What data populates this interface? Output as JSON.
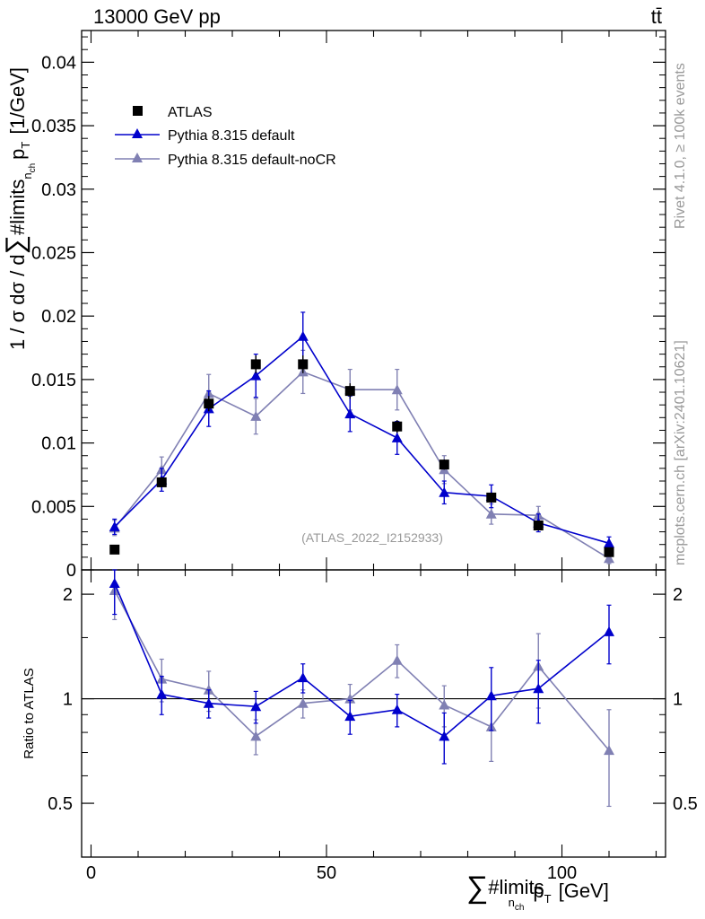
{
  "header": {
    "left": "13000 GeV pp",
    "right": "tt̄"
  },
  "side_labels": {
    "top": "Rivet 4.1.0, ≥ 100k events",
    "bottom": "mcplots.cern.ch [arXiv:2401.10621]"
  },
  "chart_data": [
    {
      "type": "scatter",
      "panel": "main",
      "ylabel": {
        "prefix": "1 / σ dσ / d",
        "sum_glyph": "∑",
        "mid": "#limits",
        "sub": "n",
        "subsub": "ch",
        "var": "p",
        "var_sub": "T",
        "unit": "[1/GeV]"
      },
      "xlim": [
        -2,
        122
      ],
      "ylim": [
        0,
        0.0425
      ],
      "y_ticks": [
        0,
        0.005,
        0.01,
        0.015,
        0.02,
        0.025,
        0.03,
        0.035,
        0.04
      ],
      "y_tick_labels": [
        "0",
        "0.005",
        "0.01",
        "0.015",
        "0.02",
        "0.025",
        "0.03",
        "0.035",
        "0.04"
      ],
      "annotation": "(ATLAS_2022_I2152933)",
      "legend_position": "top-left",
      "series": [
        {
          "name": "ATLAS",
          "marker": "square",
          "color": "#000000",
          "x": [
            5,
            15,
            25,
            35,
            45,
            55,
            65,
            75,
            85,
            95,
            110
          ],
          "y": [
            0.0016,
            0.0069,
            0.0131,
            0.0162,
            0.0162,
            0.0141,
            0.0113,
            0.0083,
            0.0057,
            0.0035,
            0.0014
          ],
          "yerr": [
            0.0002,
            0.0004,
            0.0006,
            0.0007,
            0.0007,
            0.0006,
            0.0005,
            0.0004,
            0.0003,
            0.0002,
            0.0002
          ]
        },
        {
          "name": "Pythia 8.315 default",
          "marker": "triangle",
          "color": "#0000cc",
          "x": [
            5,
            15,
            25,
            35,
            45,
            55,
            65,
            75,
            85,
            95,
            110
          ],
          "y": [
            0.0034,
            0.0071,
            0.0127,
            0.0153,
            0.0184,
            0.0123,
            0.0104,
            0.0061,
            0.0058,
            0.0037,
            0.0021
          ],
          "yerr": [
            0.0006,
            0.0009,
            0.0014,
            0.0017,
            0.0019,
            0.0014,
            0.0013,
            0.0009,
            0.0009,
            0.0007,
            0.0005
          ]
        },
        {
          "name": "Pythia 8.315 default-noCR",
          "marker": "triangle",
          "color": "#8080b3",
          "x": [
            5,
            15,
            25,
            35,
            45,
            55,
            65,
            75,
            85,
            95,
            110
          ],
          "y": [
            0.0033,
            0.0079,
            0.0139,
            0.0121,
            0.0156,
            0.0142,
            0.0142,
            0.0079,
            0.0044,
            0.0043,
            0.0009
          ],
          "yerr": [
            0.0006,
            0.001,
            0.0015,
            0.0014,
            0.0017,
            0.0016,
            0.0016,
            0.0011,
            0.0008,
            0.0007,
            0.0004
          ]
        }
      ]
    },
    {
      "type": "scatter",
      "panel": "ratio",
      "ylabel": "Ratio to ATLAS",
      "xlabel": {
        "sum_glyph": "∑",
        "mid": "#limits",
        "sub": "n",
        "subsub": "ch",
        "var": "p",
        "var_sub": "T",
        "unit": "[GeV]"
      },
      "xlim": [
        -2,
        122
      ],
      "ylim": [
        0.35,
        2.35
      ],
      "x_ticks": [
        0,
        50,
        100
      ],
      "x_tick_labels": [
        "0",
        "50",
        "100"
      ],
      "y_ticks": [
        0.5,
        1,
        2
      ],
      "y_tick_labels": [
        "0.5",
        "1",
        "2"
      ],
      "reference_line": 1,
      "series": [
        {
          "name": "Pythia 8.315 default",
          "color": "#0000cc",
          "x": [
            5,
            15,
            25,
            35,
            45,
            55,
            65,
            75,
            85,
            95,
            110
          ],
          "y": [
            2.15,
            1.03,
            0.97,
            0.95,
            1.15,
            0.89,
            0.93,
            0.78,
            1.02,
            1.07,
            1.56
          ],
          "yerr": [
            0.4,
            0.13,
            0.09,
            0.1,
            0.11,
            0.1,
            0.1,
            0.13,
            0.21,
            0.22,
            0.3
          ]
        },
        {
          "name": "Pythia 8.315 default-noCR",
          "color": "#8080b3",
          "x": [
            5,
            15,
            25,
            35,
            45,
            55,
            65,
            75,
            85,
            95,
            110
          ],
          "y": [
            2.05,
            1.14,
            1.06,
            0.78,
            0.97,
            1.0,
            1.29,
            0.96,
            0.83,
            1.24,
            0.71
          ],
          "yerr": [
            0.36,
            0.16,
            0.14,
            0.09,
            0.09,
            0.1,
            0.14,
            0.13,
            0.17,
            0.3,
            0.22
          ]
        }
      ]
    }
  ]
}
